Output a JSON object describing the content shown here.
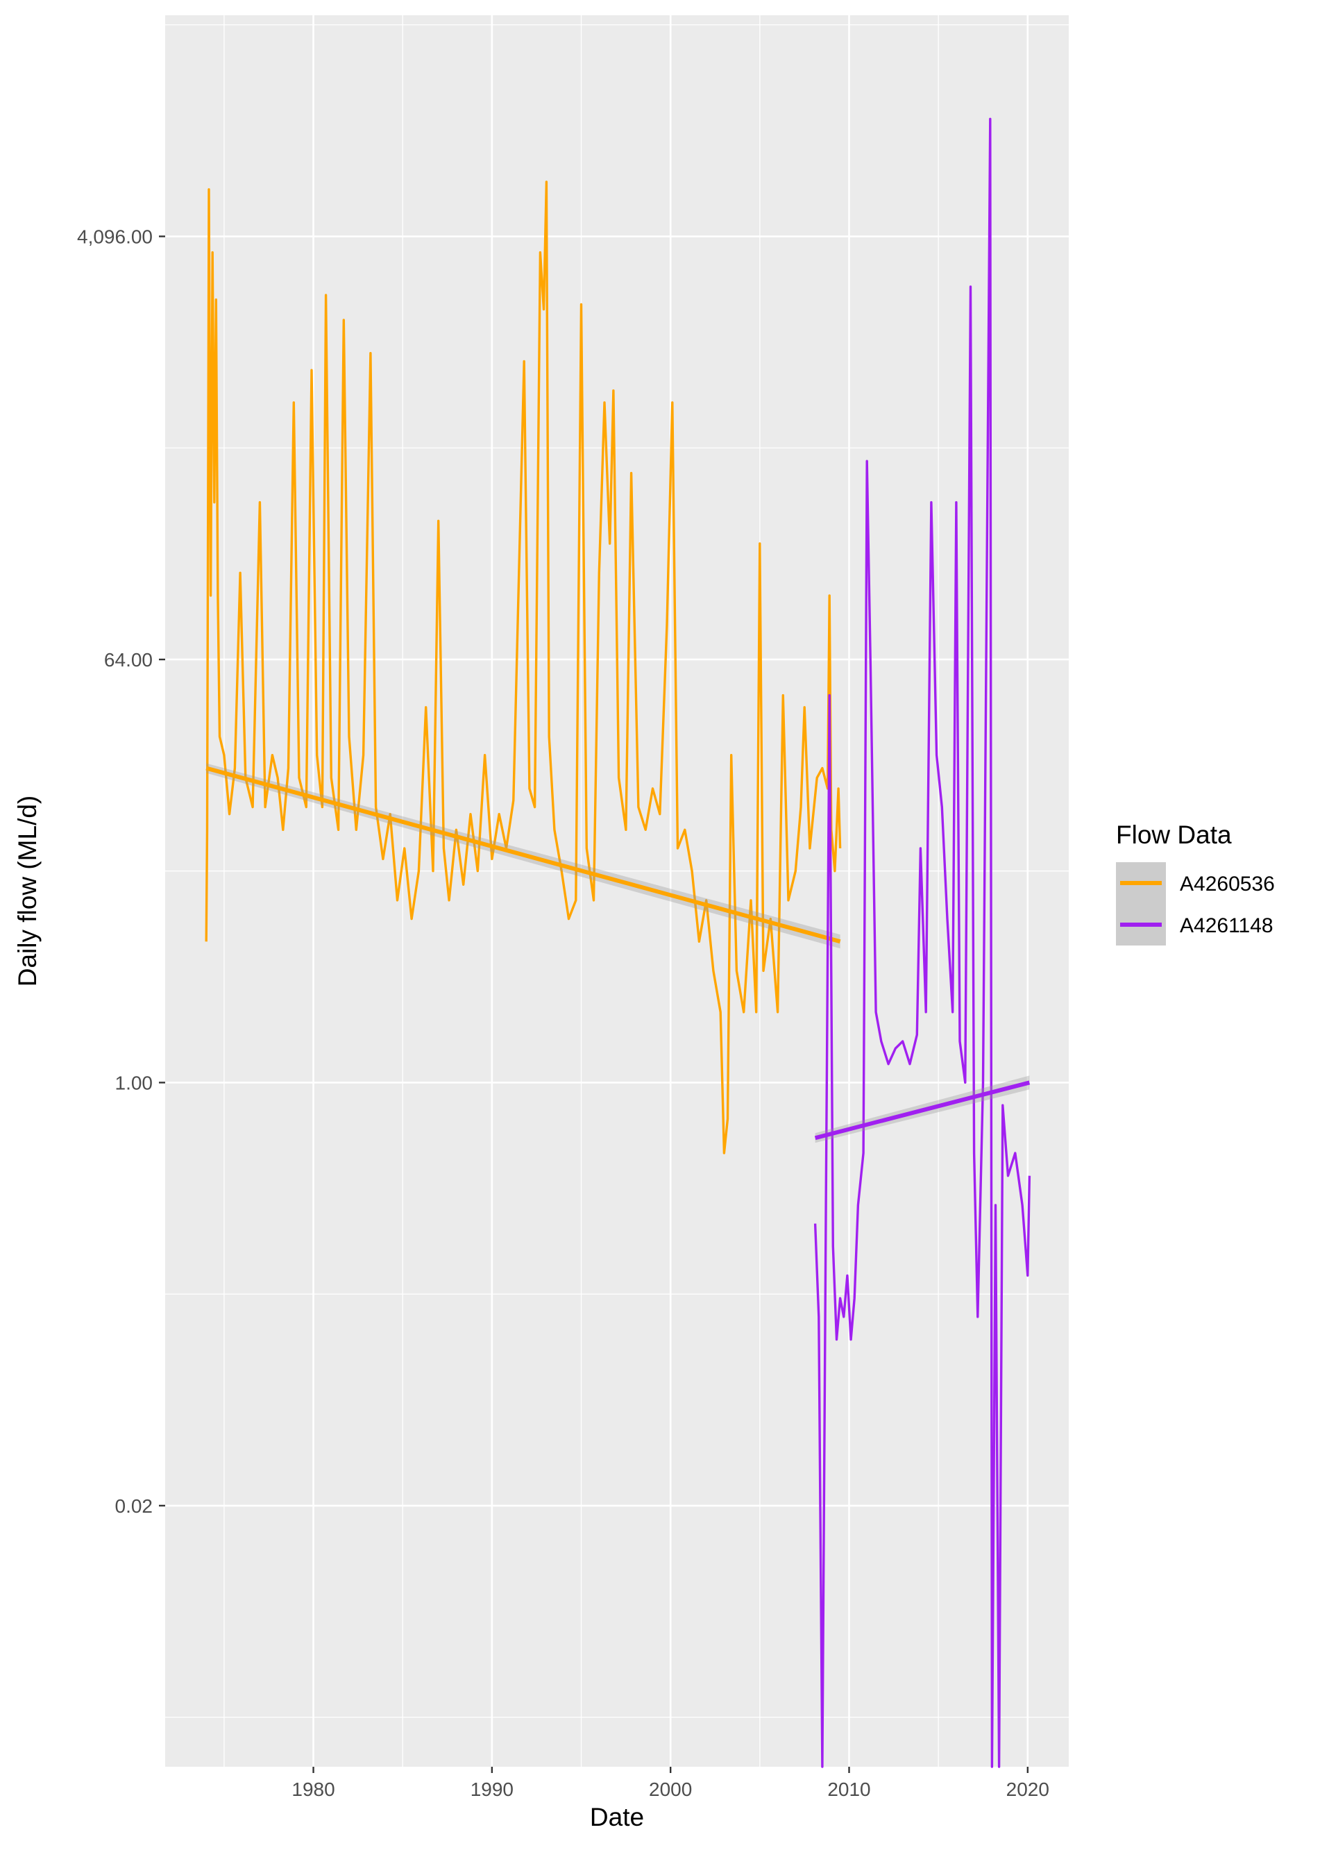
{
  "chart_data": {
    "type": "line",
    "title": "",
    "xlabel": "Date",
    "ylabel": "Daily flow (ML/d)",
    "y_scale": "log2",
    "grid": true,
    "legend_placement": "right",
    "legend_title": "Flow Data",
    "x_ticks": [
      1980,
      1990,
      2000,
      2010,
      2020
    ],
    "x_tick_labels": [
      "1980",
      "1990",
      "2000",
      "2010",
      "2020"
    ],
    "xlim": [
      1971.7,
      2022.3
    ],
    "y_ticks": [
      0.015625,
      1,
      64,
      4096
    ],
    "y_tick_labels": [
      "0.02",
      "1.00",
      "64.00",
      "4,096.00"
    ],
    "ylim": [
      0.0012,
      36000
    ],
    "series": [
      {
        "name": "A4260536",
        "color": "#FFA500",
        "points": [
          [
            1974.0,
            4.0
          ],
          [
            1974.05,
            12.0
          ],
          [
            1974.15,
            6500.0
          ],
          [
            1974.25,
            120.0
          ],
          [
            1974.35,
            3500.0
          ],
          [
            1974.45,
            300.0
          ],
          [
            1974.55,
            2200.0
          ],
          [
            1974.65,
            120.0
          ],
          [
            1974.75,
            30.0
          ],
          [
            1975.0,
            25.0
          ],
          [
            1975.3,
            14.0
          ],
          [
            1975.6,
            22.0
          ],
          [
            1975.9,
            150.0
          ],
          [
            1976.2,
            20.0
          ],
          [
            1976.6,
            15.0
          ],
          [
            1977.0,
            300.0
          ],
          [
            1977.3,
            15.0
          ],
          [
            1977.7,
            25.0
          ],
          [
            1978.0,
            20.0
          ],
          [
            1978.3,
            12.0
          ],
          [
            1978.6,
            22.0
          ],
          [
            1978.9,
            800.0
          ],
          [
            1979.2,
            20.0
          ],
          [
            1979.6,
            15.0
          ],
          [
            1979.9,
            1100.0
          ],
          [
            1980.2,
            25.0
          ],
          [
            1980.5,
            15.0
          ],
          [
            1980.7,
            2300.0
          ],
          [
            1981.0,
            20.0
          ],
          [
            1981.4,
            12.0
          ],
          [
            1981.7,
            1800.0
          ],
          [
            1982.0,
            30.0
          ],
          [
            1982.4,
            12.0
          ],
          [
            1982.8,
            25.0
          ],
          [
            1983.2,
            1300.0
          ],
          [
            1983.5,
            15.0
          ],
          [
            1983.9,
            9.0
          ],
          [
            1984.3,
            14.0
          ],
          [
            1984.7,
            6.0
          ],
          [
            1985.1,
            10.0
          ],
          [
            1985.5,
            5.0
          ],
          [
            1985.9,
            8.0
          ],
          [
            1986.3,
            40.0
          ],
          [
            1986.7,
            8.0
          ],
          [
            1987.0,
            250.0
          ],
          [
            1987.3,
            10.0
          ],
          [
            1987.6,
            6.0
          ],
          [
            1988.0,
            12.0
          ],
          [
            1988.4,
            7.0
          ],
          [
            1988.8,
            14.0
          ],
          [
            1989.2,
            8.0
          ],
          [
            1989.6,
            25.0
          ],
          [
            1990.0,
            9.0
          ],
          [
            1990.4,
            14.0
          ],
          [
            1990.8,
            10.0
          ],
          [
            1991.2,
            16.0
          ],
          [
            1991.8,
            1200.0
          ],
          [
            1992.1,
            18.0
          ],
          [
            1992.4,
            15.0
          ],
          [
            1992.7,
            3500.0
          ],
          [
            1992.9,
            2000.0
          ],
          [
            1993.05,
            7000.0
          ],
          [
            1993.2,
            30.0
          ],
          [
            1993.5,
            12.0
          ],
          [
            1993.9,
            8.0
          ],
          [
            1994.3,
            5.0
          ],
          [
            1994.7,
            6.0
          ],
          [
            1995.0,
            2100.0
          ],
          [
            1995.3,
            10.0
          ],
          [
            1995.7,
            6.0
          ],
          [
            1996.0,
            150.0
          ],
          [
            1996.3,
            800.0
          ],
          [
            1996.6,
            200.0
          ],
          [
            1996.8,
            900.0
          ],
          [
            1997.1,
            20.0
          ],
          [
            1997.5,
            12.0
          ],
          [
            1997.8,
            400.0
          ],
          [
            1998.2,
            15.0
          ],
          [
            1998.6,
            12.0
          ],
          [
            1999.0,
            18.0
          ],
          [
            1999.4,
            14.0
          ],
          [
            1999.8,
            90.0
          ],
          [
            2000.1,
            800.0
          ],
          [
            2000.4,
            10.0
          ],
          [
            2000.8,
            12.0
          ],
          [
            2001.2,
            8.0
          ],
          [
            2001.6,
            4.0
          ],
          [
            2002.0,
            6.0
          ],
          [
            2002.4,
            3.0
          ],
          [
            2002.8,
            2.0
          ],
          [
            2003.0,
            0.5
          ],
          [
            2003.2,
            0.7
          ],
          [
            2003.4,
            25.0
          ],
          [
            2003.7,
            3.0
          ],
          [
            2004.1,
            2.0
          ],
          [
            2004.5,
            6.0
          ],
          [
            2004.8,
            2.0
          ],
          [
            2005.0,
            200.0
          ],
          [
            2005.2,
            3.0
          ],
          [
            2005.6,
            5.0
          ],
          [
            2006.0,
            2.0
          ],
          [
            2006.3,
            45.0
          ],
          [
            2006.6,
            6.0
          ],
          [
            2007.0,
            8.0
          ],
          [
            2007.3,
            15.0
          ],
          [
            2007.5,
            40.0
          ],
          [
            2007.8,
            10.0
          ],
          [
            2008.2,
            20.0
          ],
          [
            2008.5,
            22.0
          ],
          [
            2008.8,
            18.0
          ],
          [
            2008.9,
            120.0
          ],
          [
            2009.0,
            12.0
          ],
          [
            2009.2,
            8.0
          ],
          [
            2009.4,
            18.0
          ],
          [
            2009.5,
            10.0
          ]
        ],
        "trend": [
          [
            1974.0,
            22.0
          ],
          [
            2009.5,
            4.0
          ]
        ]
      },
      {
        "name": "A4261148",
        "color": "#A020F0",
        "points": [
          [
            2008.1,
            0.25
          ],
          [
            2008.3,
            0.1
          ],
          [
            2008.5,
            0.0012
          ],
          [
            2008.7,
            0.3
          ],
          [
            2008.9,
            45.0
          ],
          [
            2009.1,
            0.2
          ],
          [
            2009.3,
            0.08
          ],
          [
            2009.5,
            0.12
          ],
          [
            2009.7,
            0.1
          ],
          [
            2009.9,
            0.15
          ],
          [
            2010.1,
            0.08
          ],
          [
            2010.3,
            0.12
          ],
          [
            2010.5,
            0.3
          ],
          [
            2010.8,
            0.5
          ],
          [
            2011.0,
            450.0
          ],
          [
            2011.2,
            60.0
          ],
          [
            2011.5,
            2.0
          ],
          [
            2011.8,
            1.5
          ],
          [
            2012.2,
            1.2
          ],
          [
            2012.6,
            1.4
          ],
          [
            2013.0,
            1.5
          ],
          [
            2013.4,
            1.2
          ],
          [
            2013.8,
            1.6
          ],
          [
            2014.0,
            10.0
          ],
          [
            2014.3,
            2.0
          ],
          [
            2014.6,
            300.0
          ],
          [
            2014.9,
            25.0
          ],
          [
            2015.2,
            15.0
          ],
          [
            2015.5,
            5.0
          ],
          [
            2015.8,
            2.0
          ],
          [
            2016.0,
            300.0
          ],
          [
            2016.2,
            1.5
          ],
          [
            2016.5,
            1.0
          ],
          [
            2016.8,
            2500.0
          ],
          [
            2017.0,
            0.5
          ],
          [
            2017.2,
            0.1
          ],
          [
            2017.5,
            1.0
          ],
          [
            2017.9,
            13000.0
          ],
          [
            2018.0,
            0.0012
          ],
          [
            2018.2,
            0.3
          ],
          [
            2018.4,
            0.0012
          ],
          [
            2018.6,
            0.8
          ],
          [
            2018.9,
            0.4
          ],
          [
            2019.3,
            0.5
          ],
          [
            2019.7,
            0.3
          ],
          [
            2020.0,
            0.15
          ],
          [
            2020.1,
            0.4
          ]
        ],
        "trend": [
          [
            2008.1,
            0.58
          ],
          [
            2020.1,
            1.0
          ]
        ]
      }
    ]
  }
}
